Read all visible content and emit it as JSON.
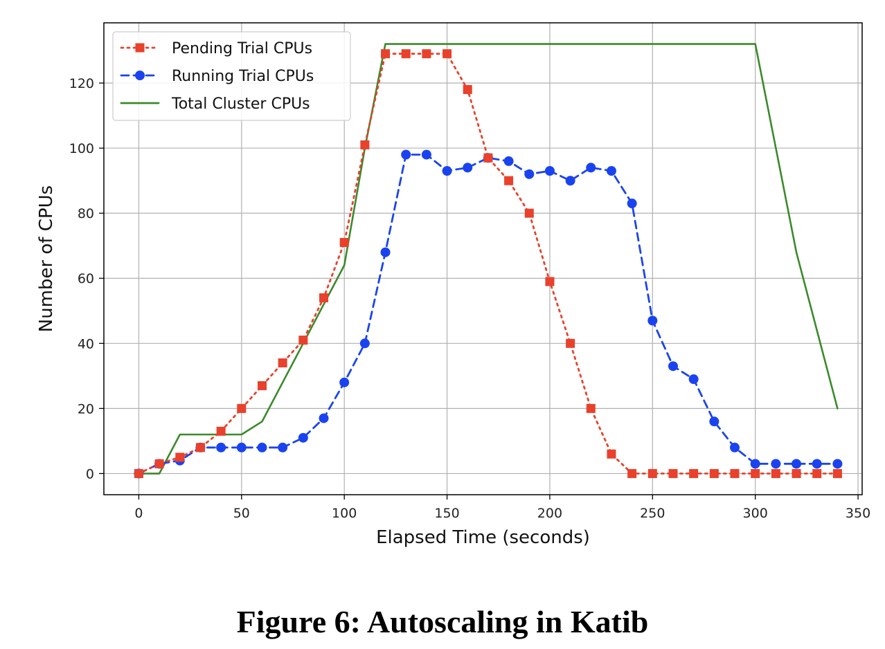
{
  "caption": "Figure 6: Autoscaling in Katib",
  "chart_data": {
    "type": "line",
    "title": "",
    "xlabel": "Elapsed Time (seconds)",
    "ylabel": "Number of CPUs",
    "xlim": [
      -17,
      352
    ],
    "ylim": [
      -6.5,
      138.5
    ],
    "xticks": [
      0,
      50,
      100,
      150,
      200,
      250,
      300,
      350
    ],
    "yticks": [
      0,
      20,
      40,
      60,
      80,
      100,
      120
    ],
    "grid": true,
    "legend": "top-left",
    "series": [
      {
        "name": "Pending Trial CPUs",
        "color": "#e8412c",
        "linestyle": "dotted",
        "marker": "square",
        "x": [
          0,
          10,
          20,
          30,
          40,
          50,
          60,
          70,
          80,
          90,
          100,
          110,
          120,
          130,
          140,
          150,
          160,
          170,
          180,
          190,
          200,
          210,
          220,
          230,
          240,
          250,
          260,
          270,
          280,
          290,
          300,
          310,
          320,
          330,
          340
        ],
        "y": [
          0,
          3,
          5,
          8,
          13,
          20,
          27,
          34,
          41,
          54,
          71,
          101,
          129,
          129,
          129,
          129,
          118,
          97,
          90,
          80,
          59,
          40,
          20,
          6,
          0,
          0,
          0,
          0,
          0,
          0,
          0,
          0,
          0,
          0,
          0
        ]
      },
      {
        "name": "Running Trial CPUs",
        "color": "#1a43f0",
        "linestyle": "dashed",
        "marker": "circle",
        "x": [
          0,
          10,
          20,
          30,
          40,
          50,
          60,
          70,
          80,
          90,
          100,
          110,
          120,
          130,
          140,
          150,
          160,
          170,
          180,
          190,
          200,
          210,
          220,
          230,
          240,
          250,
          260,
          270,
          280,
          290,
          300,
          310,
          320,
          330,
          340
        ],
        "y": [
          0,
          3,
          4,
          8,
          8,
          8,
          8,
          8,
          11,
          17,
          28,
          40,
          68,
          98,
          98,
          93,
          94,
          97,
          96,
          92,
          93,
          90,
          94,
          93,
          83,
          47,
          33,
          29,
          16,
          8,
          3,
          3,
          3,
          3,
          3
        ]
      },
      {
        "name": "Total Cluster CPUs",
        "color": "#3a8a2a",
        "linestyle": "solid",
        "marker": "none",
        "x": [
          0,
          10,
          20,
          30,
          40,
          50,
          60,
          70,
          80,
          90,
          100,
          110,
          120,
          130,
          140,
          150,
          160,
          170,
          180,
          190,
          200,
          210,
          220,
          230,
          240,
          250,
          260,
          270,
          280,
          290,
          300,
          310,
          320,
          330,
          340
        ],
        "y": [
          0,
          0,
          12,
          12,
          12,
          12,
          16,
          28,
          40,
          52,
          64,
          100,
          132,
          132,
          132,
          132,
          132,
          132,
          132,
          132,
          132,
          132,
          132,
          132,
          132,
          132,
          132,
          132,
          132,
          132,
          132,
          100,
          68,
          44,
          20
        ]
      }
    ]
  }
}
